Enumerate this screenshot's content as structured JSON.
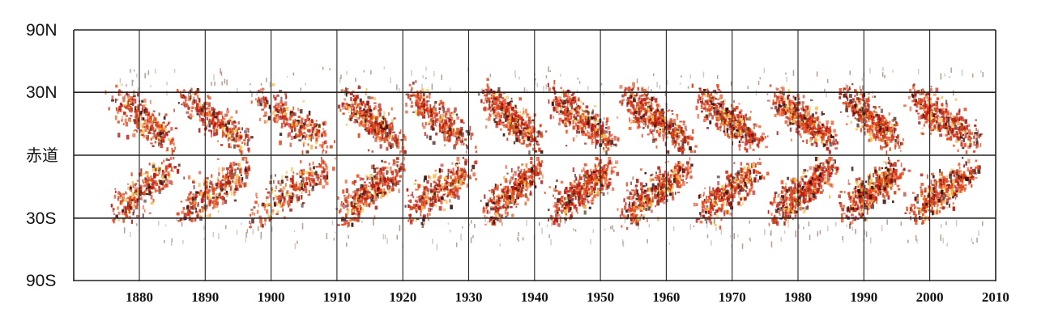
{
  "chart_data": {
    "type": "scatter",
    "title": "",
    "xlabel": "",
    "ylabel": "",
    "xlim": [
      1870,
      2010
    ],
    "y_ticks": [
      {
        "label": "90N",
        "lat": 90
      },
      {
        "label": "30N",
        "lat": 30
      },
      {
        "label": "赤道",
        "lat": 0
      },
      {
        "label": "30S",
        "lat": -30
      },
      {
        "label": "90S",
        "lat": -90
      }
    ],
    "x_ticks": [
      "1880",
      "1890",
      "1900",
      "1910",
      "1920",
      "1930",
      "1940",
      "1950",
      "1960",
      "1970",
      "1980",
      "1990",
      "2000",
      "2010"
    ],
    "x_tick_values": [
      1880,
      1890,
      1900,
      1910,
      1920,
      1930,
      1940,
      1950,
      1960,
      1970,
      1980,
      1990,
      2000,
      2010
    ],
    "grid": true,
    "colors": {
      "low": "#f6c04a",
      "mid": "#e0481a",
      "high": "#b51a12",
      "dark": "#3a0e0a",
      "grid": "#222222"
    },
    "cycles": [
      {
        "start": 1875.0,
        "end": 1886.0,
        "intensity": 0.55
      },
      {
        "start": 1885.5,
        "end": 1897.0,
        "intensity": 0.6
      },
      {
        "start": 1896.5,
        "end": 1909.5,
        "intensity": 0.5
      },
      {
        "start": 1909.5,
        "end": 1920.5,
        "intensity": 0.7
      },
      {
        "start": 1920.0,
        "end": 1931.0,
        "intensity": 0.65
      },
      {
        "start": 1931.5,
        "end": 1941.5,
        "intensity": 0.85
      },
      {
        "start": 1941.5,
        "end": 1952.5,
        "intensity": 0.85
      },
      {
        "start": 1952.5,
        "end": 1964.0,
        "intensity": 1.0
      },
      {
        "start": 1964.0,
        "end": 1975.0,
        "intensity": 0.8
      },
      {
        "start": 1975.5,
        "end": 1986.0,
        "intensity": 0.95
      },
      {
        "start": 1986.0,
        "end": 1996.0,
        "intensity": 0.9
      },
      {
        "start": 1996.0,
        "end": 2008.0,
        "intensity": 0.85
      }
    ]
  }
}
